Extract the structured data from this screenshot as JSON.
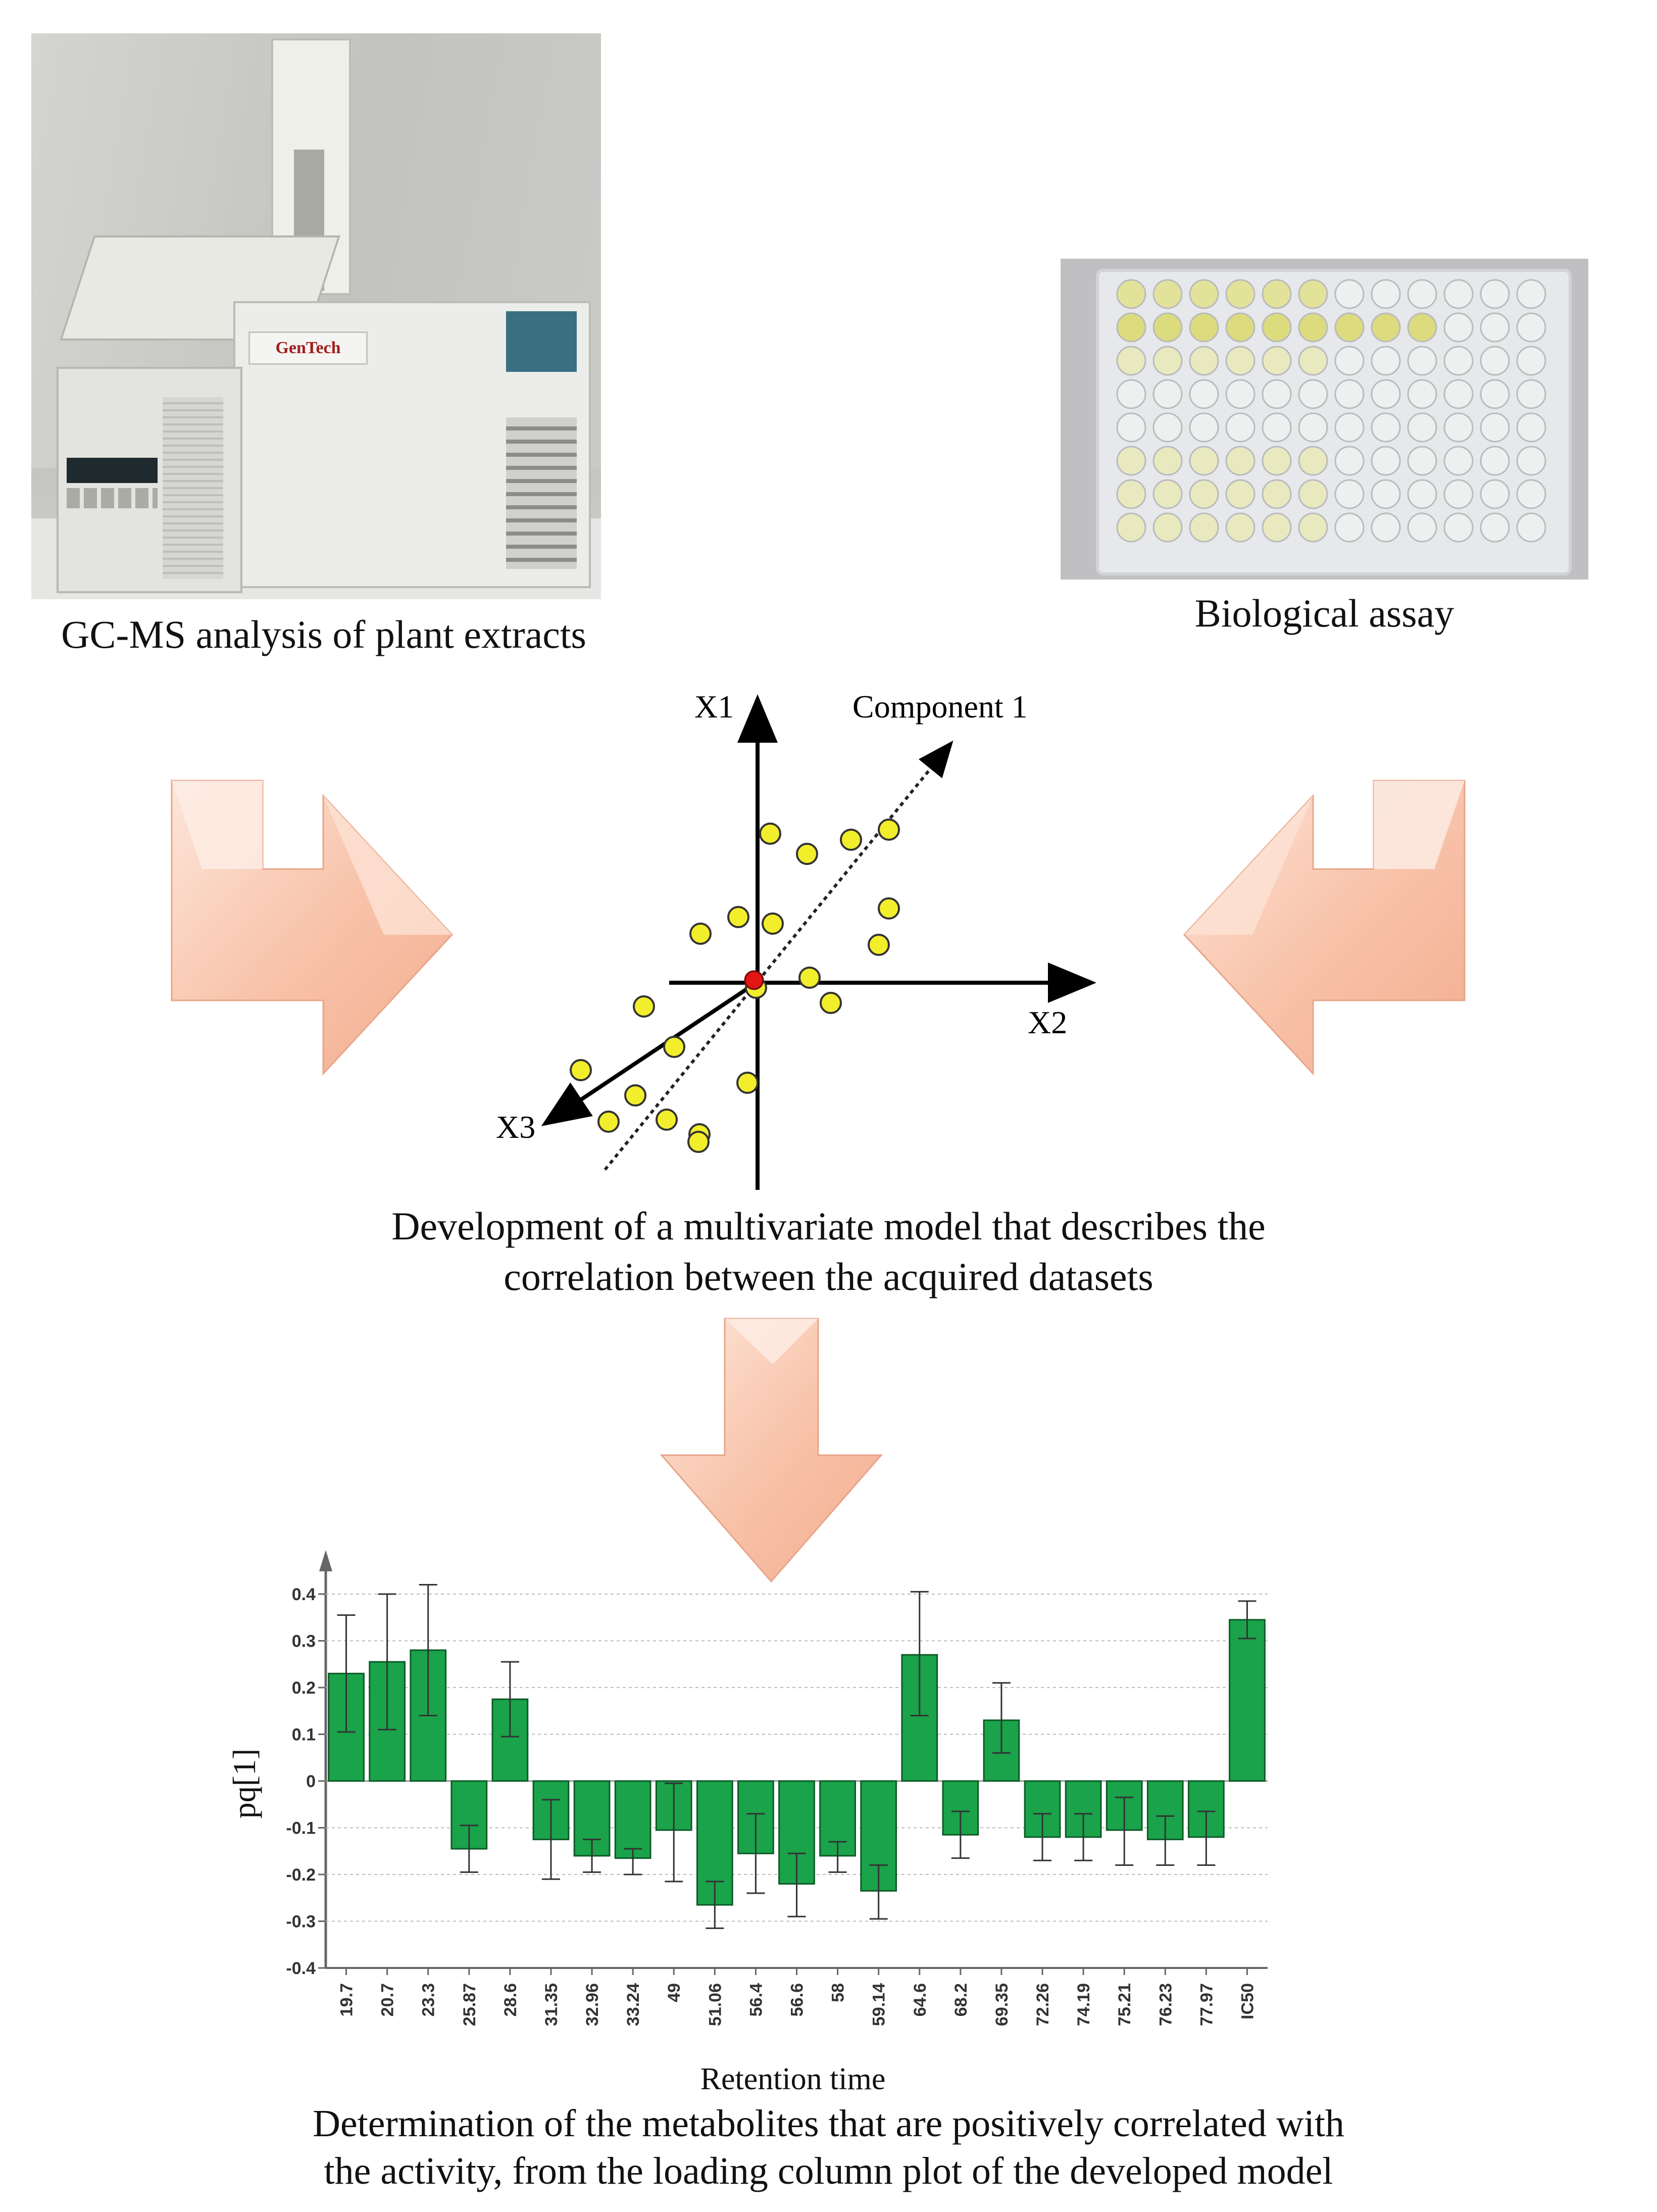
{
  "gcms": {
    "caption": "GC-MS analysis of plant extracts",
    "brand": "GenTech"
  },
  "assay": {
    "caption": "Biological assay"
  },
  "model": {
    "axis_x1": "X1",
    "axis_x2": "X2",
    "axis_x3": "X3",
    "component": "Component 1",
    "caption_line1": "Development of a multivariate model that describes the",
    "caption_line2": "correlation between the acquired datasets"
  },
  "chart_data": {
    "type": "bar",
    "title": "",
    "xlabel": "Retention time",
    "ylabel": "pq[1]",
    "ylim": [
      -0.4,
      0.4
    ],
    "yticks": [
      "0.4",
      "0.3",
      "0.2",
      "0.1",
      "0",
      "-0.1",
      "-0.2",
      "-0.3",
      "-0.4"
    ],
    "grid": true,
    "bar_color": "#1aa34a",
    "categories": [
      "19.7",
      "20.7",
      "23.3",
      "25.87",
      "28.6",
      "31.35",
      "32.96",
      "33.24",
      "49",
      "51.06",
      "56.4",
      "56.6",
      "58",
      "59.14",
      "64.6",
      "68.2",
      "69.35",
      "72.26",
      "74.19",
      "75.21",
      "76.23",
      "77.97",
      "IC50"
    ],
    "values": [
      0.23,
      0.255,
      0.28,
      -0.145,
      0.175,
      -0.125,
      -0.16,
      -0.165,
      -0.105,
      -0.265,
      -0.155,
      -0.22,
      -0.16,
      -0.235,
      0.27,
      -0.115,
      0.13,
      -0.12,
      -0.12,
      -0.105,
      -0.125,
      -0.12,
      0.345
    ],
    "err_low": [
      0.105,
      0.11,
      0.14,
      -0.195,
      0.095,
      -0.21,
      -0.195,
      -0.2,
      -0.215,
      -0.315,
      -0.24,
      -0.29,
      -0.195,
      -0.295,
      0.14,
      -0.165,
      0.06,
      -0.17,
      -0.17,
      -0.18,
      -0.18,
      -0.18,
      0.305
    ],
    "err_high": [
      0.355,
      0.4,
      0.42,
      -0.095,
      0.255,
      -0.04,
      -0.125,
      -0.145,
      -0.005,
      -0.215,
      -0.07,
      -0.155,
      -0.13,
      -0.18,
      0.405,
      -0.065,
      0.21,
      -0.07,
      -0.07,
      -0.035,
      -0.075,
      -0.065,
      0.385
    ]
  },
  "final": {
    "caption_line1": "Determination of the metabolites that are positively correlated with",
    "caption_line2": "the activity, from the loading column plot of the developed model"
  }
}
